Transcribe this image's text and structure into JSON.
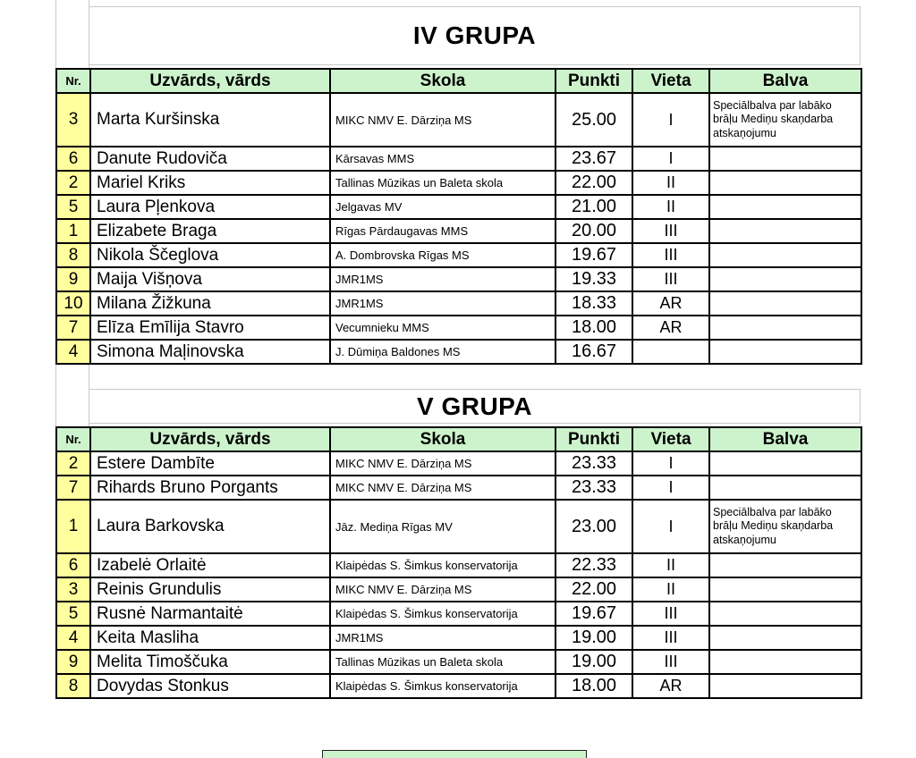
{
  "colors": {
    "header_green": "#cdf3cd",
    "row_yellow": "#ffff9e",
    "border": "#000000",
    "grid_faint": "#c9c9c9"
  },
  "groups": [
    {
      "title": "IV GRUPA",
      "headers": {
        "nr": "Nr.",
        "name": "Uzvārds, vārds",
        "school": "Skola",
        "points": "Punkti",
        "place": "Vieta",
        "prize": "Balva"
      },
      "rows": [
        {
          "nr": "3",
          "name": "Marta Kuršinska",
          "school": "MIKC NMV E. Dārziņa MS",
          "points": "25.00",
          "place": "I",
          "prize": "Speciālbalva par labāko brāļu Mediņu skaņdarba atskaņojumu"
        },
        {
          "nr": "6",
          "name": "Danute Rudoviča",
          "school": "Kārsavas MMS",
          "points": "23.67",
          "place": "I",
          "prize": ""
        },
        {
          "nr": "2",
          "name": "Mariel Kriks",
          "school": "Tallinas Mūzikas un Baleta skola",
          "points": "22.00",
          "place": "II",
          "prize": ""
        },
        {
          "nr": "5",
          "name": "Laura Pļenkova",
          "school": "Jelgavas MV",
          "points": "21.00",
          "place": "II",
          "prize": ""
        },
        {
          "nr": "1",
          "name": "Elizabete Braga",
          "school": "Rīgas Pārdaugavas MMS",
          "points": "20.00",
          "place": "III",
          "prize": ""
        },
        {
          "nr": "8",
          "name": "Nikola Ščeglova",
          "school": "A. Dombrovska Rīgas MS",
          "points": "19.67",
          "place": "III",
          "prize": ""
        },
        {
          "nr": "9",
          "name": "Maija Višņova",
          "school": "JMR1MS",
          "points": "19.33",
          "place": "III",
          "prize": ""
        },
        {
          "nr": "10",
          "name": "Milana Žižkuna",
          "school": "JMR1MS",
          "points": "18.33",
          "place": "AR",
          "prize": ""
        },
        {
          "nr": "7",
          "name": "Elīza Emīlija Stavro",
          "school": "Vecumnieku MMS",
          "points": "18.00",
          "place": "AR",
          "prize": ""
        },
        {
          "nr": "4",
          "name": "Simona Maļinovska",
          "school": "J. Dūmiņa Baldones MS",
          "points": "16.67",
          "place": "",
          "prize": ""
        }
      ]
    },
    {
      "title": "V GRUPA",
      "headers": {
        "nr": "Nr.",
        "name": "Uzvārds, vārds",
        "school": "Skola",
        "points": "Punkti",
        "place": "Vieta",
        "prize": "Balva"
      },
      "rows": [
        {
          "nr": "2",
          "name": "Estere Dambīte",
          "school": "MIKC NMV E. Dārziņa MS",
          "points": "23.33",
          "place": "I",
          "prize": ""
        },
        {
          "nr": "7",
          "name": "Rihards Bruno Porgants",
          "school": "MIKC NMV E. Dārziņa MS",
          "points": "23.33",
          "place": "I",
          "prize": ""
        },
        {
          "nr": "1",
          "name": "Laura Barkovska",
          "school": "Jāz. Mediņa Rīgas MV",
          "points": "23.00",
          "place": "I",
          "prize": "Speciālbalva par labāko brāļu Mediņu skaņdarba atskaņojumu"
        },
        {
          "nr": "6",
          "name": "Izabelė Orlaitė",
          "school": "Klaipėdas S. Šimkus konservatorija",
          "points": "22.33",
          "place": "II",
          "prize": ""
        },
        {
          "nr": "3",
          "name": "Reinis Grundulis",
          "school": "MIKC NMV E. Dārziņa MS",
          "points": "22.00",
          "place": "II",
          "prize": ""
        },
        {
          "nr": "5",
          "name": "Rusnė Narmantaitė",
          "school": "Klaipėdas S. Šimkus konservatorija",
          "points": "19.67",
          "place": "III",
          "prize": ""
        },
        {
          "nr": "4",
          "name": "Keita Masliha",
          "school": "JMR1MS",
          "points": "19.00",
          "place": "III",
          "prize": ""
        },
        {
          "nr": "9",
          "name": "Melita Timoščuka",
          "school": "Tallinas Mūzikas un Baleta skola",
          "points": "19.00",
          "place": "III",
          "prize": ""
        },
        {
          "nr": "8",
          "name": "Dovydas Stonkus",
          "school": "Klaipėdas S. Šimkus konservatorija",
          "points": "18.00",
          "place": "AR",
          "prize": ""
        }
      ]
    }
  ]
}
